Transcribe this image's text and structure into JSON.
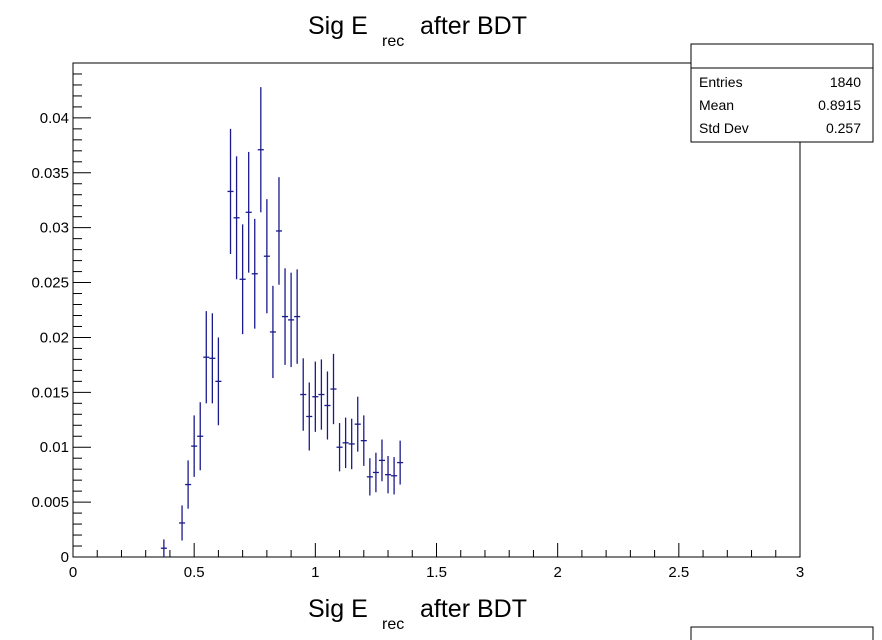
{
  "colors": {
    "marker": "#1a1a8c",
    "axis": "#000000",
    "background": "#ffffff"
  },
  "chart_data": {
    "type": "scatter",
    "title": {
      "main": "Sig E",
      "subscript": "rec",
      "suffix": "after  BDT"
    },
    "xlim": [
      0,
      3
    ],
    "ylim": [
      0,
      0.045
    ],
    "x_ticks": [
      0,
      0.5,
      1,
      1.5,
      2,
      2.5,
      3
    ],
    "x_tick_labels": [
      "0",
      "0.5",
      "1",
      "1.5",
      "2",
      "2.5",
      "3"
    ],
    "y_ticks": [
      0,
      0.005,
      0.01,
      0.015,
      0.02,
      0.025,
      0.03,
      0.035,
      0.04
    ],
    "y_tick_labels": [
      "0",
      "0.005",
      "0.01",
      "0.015",
      "0.02",
      "0.025",
      "0.03",
      "0.035",
      "0.04"
    ],
    "bin_width": 0.025,
    "points": [
      {
        "x": 0.375,
        "y": 0.0008,
        "err": 0.0008
      },
      {
        "x": 0.45,
        "y": 0.0031,
        "err": 0.0016
      },
      {
        "x": 0.475,
        "y": 0.0066,
        "err": 0.0022
      },
      {
        "x": 0.5,
        "y": 0.0101,
        "err": 0.0028
      },
      {
        "x": 0.525,
        "y": 0.011,
        "err": 0.0031
      },
      {
        "x": 0.55,
        "y": 0.0182,
        "err": 0.0042
      },
      {
        "x": 0.575,
        "y": 0.0181,
        "err": 0.0041
      },
      {
        "x": 0.6,
        "y": 0.016,
        "err": 0.004
      },
      {
        "x": 0.65,
        "y": 0.0333,
        "err": 0.0057
      },
      {
        "x": 0.675,
        "y": 0.0309,
        "err": 0.0056
      },
      {
        "x": 0.7,
        "y": 0.0253,
        "err": 0.005
      },
      {
        "x": 0.725,
        "y": 0.0314,
        "err": 0.0055
      },
      {
        "x": 0.75,
        "y": 0.0258,
        "err": 0.005
      },
      {
        "x": 0.775,
        "y": 0.0371,
        "err": 0.0057
      },
      {
        "x": 0.8,
        "y": 0.0274,
        "err": 0.0052
      },
      {
        "x": 0.825,
        "y": 0.0205,
        "err": 0.0042
      },
      {
        "x": 0.85,
        "y": 0.0297,
        "err": 0.0049
      },
      {
        "x": 0.875,
        "y": 0.0219,
        "err": 0.0044
      },
      {
        "x": 0.9,
        "y": 0.0216,
        "err": 0.0043
      },
      {
        "x": 0.925,
        "y": 0.0219,
        "err": 0.0043
      },
      {
        "x": 0.95,
        "y": 0.0148,
        "err": 0.0033
      },
      {
        "x": 0.975,
        "y": 0.0128,
        "err": 0.0031
      },
      {
        "x": 1.0,
        "y": 0.0146,
        "err": 0.0032
      },
      {
        "x": 1.025,
        "y": 0.0148,
        "err": 0.0032
      },
      {
        "x": 1.05,
        "y": 0.0138,
        "err": 0.0031
      },
      {
        "x": 1.075,
        "y": 0.0153,
        "err": 0.0032
      },
      {
        "x": 1.1,
        "y": 0.01,
        "err": 0.0022
      },
      {
        "x": 1.125,
        "y": 0.0104,
        "err": 0.0023
      },
      {
        "x": 1.15,
        "y": 0.0103,
        "err": 0.0023
      },
      {
        "x": 1.175,
        "y": 0.0121,
        "err": 0.0025
      },
      {
        "x": 1.2,
        "y": 0.0106,
        "err": 0.0023
      },
      {
        "x": 1.225,
        "y": 0.0073,
        "err": 0.0017
      },
      {
        "x": 1.25,
        "y": 0.0077,
        "err": 0.0018
      },
      {
        "x": 1.275,
        "y": 0.0088,
        "err": 0.0019
      },
      {
        "x": 1.3,
        "y": 0.0075,
        "err": 0.0017
      },
      {
        "x": 1.325,
        "y": 0.0074,
        "err": 0.0017
      },
      {
        "x": 1.35,
        "y": 0.0086,
        "err": 0.002
      }
    ]
  },
  "stats_box": {
    "rows": [
      {
        "label": "Entries",
        "value": "1840"
      },
      {
        "label": "Mean",
        "value": "0.8915"
      },
      {
        "label": "Std Dev",
        "value": "0.257"
      }
    ]
  },
  "second_pad": {
    "title": {
      "main": "Sig E",
      "subscript": "rec",
      "suffix": "after  BDT"
    }
  }
}
